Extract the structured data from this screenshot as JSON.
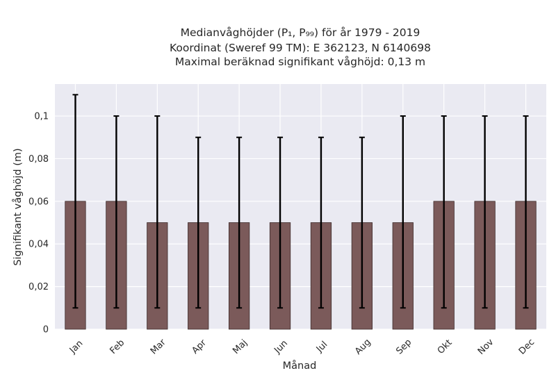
{
  "chart_data": {
    "type": "bar",
    "title_lines": [
      "Medianvåghöjder (P₁, P₉₉) för år 1979 - 2019",
      "Koordinat (Sweref 99 TM): E 362123, N 6140698",
      "Maximal beräknad signifikant våghöjd: 0,13 m"
    ],
    "xlabel": "Månad",
    "ylabel": "Signifikant våghöjd (m)",
    "categories": [
      "Jan",
      "Feb",
      "Mar",
      "Apr",
      "Maj",
      "Jun",
      "Jul",
      "Aug",
      "Sep",
      "Okt",
      "Nov",
      "Dec"
    ],
    "series": [
      {
        "values": [
          0.06,
          0.06,
          0.05,
          0.05,
          0.05,
          0.05,
          0.05,
          0.05,
          0.05,
          0.06,
          0.06,
          0.06
        ],
        "error_low": [
          0.01,
          0.01,
          0.01,
          0.01,
          0.01,
          0.01,
          0.01,
          0.01,
          0.01,
          0.01,
          0.01,
          0.01
        ],
        "error_high": [
          0.11,
          0.1,
          0.1,
          0.09,
          0.09,
          0.09,
          0.09,
          0.09,
          0.1,
          0.1,
          0.1,
          0.1
        ]
      }
    ],
    "ylim": [
      0,
      0.115
    ],
    "yticks": [
      0,
      0.02,
      0.04,
      0.06,
      0.08,
      0.1
    ],
    "ytick_labels": [
      "0",
      "0,02",
      "0,04",
      "0,06",
      "0,08",
      "0,1"
    ],
    "grid": true,
    "colors": {
      "bar": "#7b5a5a",
      "bar_edge": "#3d2b2b",
      "error": "#000000",
      "plot_background": "#eaeaf2",
      "grid": "#ffffff"
    }
  }
}
